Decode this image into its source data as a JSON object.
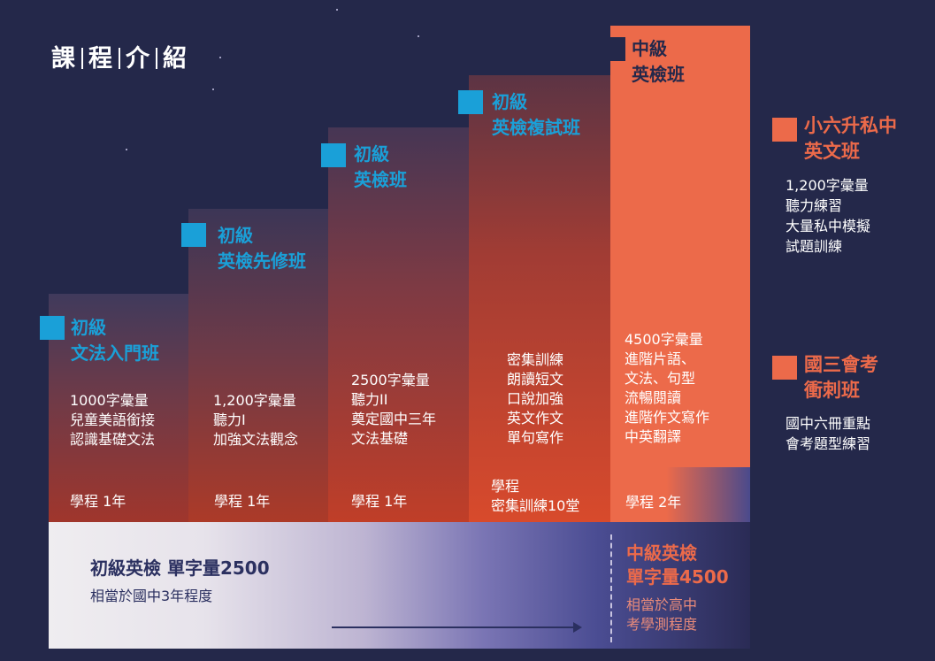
{
  "page_title_parts": [
    "課",
    "程",
    "介",
    "紹"
  ],
  "colors": {
    "background": "#24284a",
    "accent_blue": "#1aa0d8",
    "accent_orange": "#ec6a4a"
  },
  "steps": [
    {
      "title_line1": "初級",
      "title_line2": "文法入門班",
      "details": [
        "1000字彙量",
        "兒童美語銜接",
        "認識基礎文法"
      ],
      "duration": "學程 1年"
    },
    {
      "title_line1": "初級",
      "title_line2": "英檢先修班",
      "details": [
        "1,200字彙量",
        "聽力I",
        "加強文法觀念"
      ],
      "duration": "學程 1年"
    },
    {
      "title_line1": "初級",
      "title_line2": "英檢班",
      "details": [
        "2500字彙量",
        "聽力II",
        "奠定國中三年",
        "文法基礎"
      ],
      "duration": "學程 1年"
    },
    {
      "title_line1": "初級",
      "title_line2": "英檢複試班",
      "details": [
        "密集訓練",
        "朗讀短文",
        "口說加強",
        "英文作文",
        "單句寫作"
      ],
      "duration_line1": "學程",
      "duration_line2": "密集訓練10堂"
    },
    {
      "title_line1": "中級",
      "title_line2": "英檢班",
      "details": [
        "4500字彙量",
        "進階片語、",
        "文法、句型",
        "流暢閱讀",
        "進階作文寫作",
        "中英翻譯"
      ],
      "duration": "學程 2年"
    }
  ],
  "side_courses": [
    {
      "title_line1": "小六升私中",
      "title_line2": "英文班",
      "details": [
        "1,200字彙量",
        "聽力練習",
        "大量私中模擬",
        "試題訓練"
      ]
    },
    {
      "title_line1": "國三會考",
      "title_line2": "衝刺班",
      "details": [
        "國中六冊重點",
        "會考題型練習"
      ]
    }
  ],
  "bottom": {
    "left_title": "初級英檢 單字量2500",
    "left_sub": "相當於國中3年程度",
    "right_title_line1": "中級英檢",
    "right_title_line2": "單字量4500",
    "right_sub_line1": "相當於高中",
    "right_sub_line2": "考學測程度"
  }
}
